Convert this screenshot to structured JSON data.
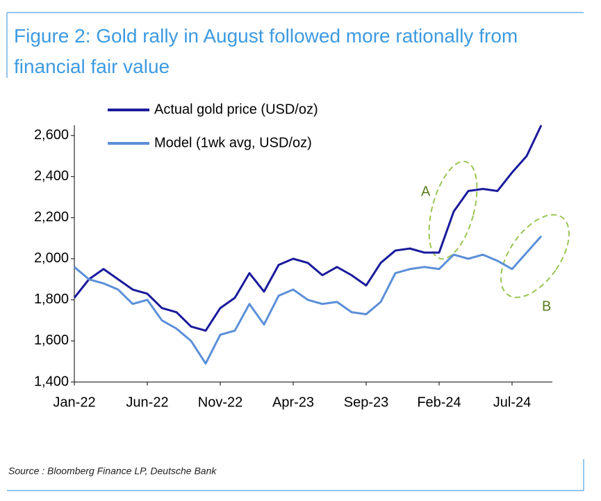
{
  "chart_data": {
    "type": "line",
    "title": "Figure 2: Gold rally in August followed more rationally from financial fair value",
    "source": "Source : Bloomberg Finance LP, Deutsche Bank",
    "annotations": [
      "A",
      "B"
    ],
    "categories": [
      "Jan-22",
      null,
      null,
      null,
      null,
      "Jun-22",
      null,
      null,
      null,
      null,
      "Nov-22",
      null,
      null,
      null,
      null,
      "Apr-23",
      null,
      null,
      null,
      null,
      "Sep-23",
      null,
      null,
      null,
      null,
      "Feb-24",
      null,
      null,
      null,
      null,
      "Jul-24",
      null,
      null
    ],
    "series": [
      {
        "name": "Actual gold price (USD/oz)",
        "color": "#1a1a9c",
        "values": [
          1810,
          1900,
          1950,
          1900,
          1850,
          1830,
          1760,
          1740,
          1670,
          1650,
          1760,
          1810,
          1930,
          1840,
          1970,
          2000,
          1980,
          1920,
          1960,
          1920,
          1870,
          1980,
          2040,
          2050,
          2030,
          2030,
          2230,
          2330,
          2340,
          2330,
          2420,
          2500,
          2650
        ]
      },
      {
        "name": "Model (1wk avg, USD/oz)",
        "color": "#5b8fd8",
        "values": [
          1960,
          1900,
          1880,
          1850,
          1780,
          1800,
          1700,
          1660,
          1600,
          1490,
          1630,
          1650,
          1780,
          1680,
          1820,
          1850,
          1800,
          1780,
          1790,
          1740,
          1730,
          1790,
          1930,
          1950,
          1960,
          1950,
          2020,
          2000,
          2020,
          1990,
          1950,
          2030,
          2110
        ]
      }
    ],
    "ylim": [
      1400,
      2650
    ],
    "yticks": [
      {
        "value": 1400,
        "label": "1,400"
      },
      {
        "value": 1600,
        "label": "1,600"
      },
      {
        "value": 1800,
        "label": "1,800"
      },
      {
        "value": 2000,
        "label": "2,000"
      },
      {
        "value": 2200,
        "label": "2,200"
      },
      {
        "value": 2400,
        "label": "2,400"
      },
      {
        "value": 2600,
        "label": "2,600"
      }
    ],
    "grid": false
  }
}
